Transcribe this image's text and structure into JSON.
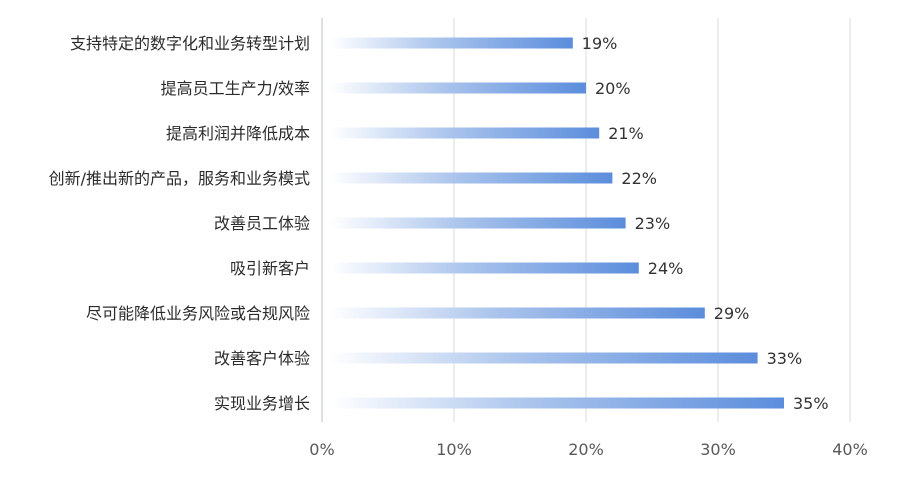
{
  "chart_data": {
    "type": "bar",
    "orientation": "horizontal",
    "title": "",
    "xlabel": "",
    "ylabel": "",
    "categories": [
      "支持特定的数字化和业务转型计划",
      "提高员工生产力/效率",
      "提高利润并降低成本",
      "创新/推出新的产品，服务和业务模式",
      "改善员工体验",
      "吸引新客户",
      "尽可能降低业务风险或合规风险",
      "改善客户体验",
      "实现业务增长"
    ],
    "values": [
      19,
      20,
      21,
      22,
      23,
      24,
      29,
      33,
      35
    ],
    "value_labels": [
      "19%",
      "20%",
      "21%",
      "22%",
      "23%",
      "24%",
      "29%",
      "33%",
      "35%"
    ],
    "xlim": [
      0,
      40
    ],
    "xticks": [
      0,
      10,
      20,
      30,
      40
    ],
    "xtick_labels": [
      "0%",
      "10%",
      "20%",
      "30%",
      "40%"
    ],
    "grid": "vertical",
    "legend": "none",
    "colors": {
      "bar_start": "#ffffff",
      "bar_end": "#5b8ddc",
      "grid": "#d9d9d9",
      "axis": "#bfbfbf",
      "text": "#2b2b2b"
    }
  }
}
